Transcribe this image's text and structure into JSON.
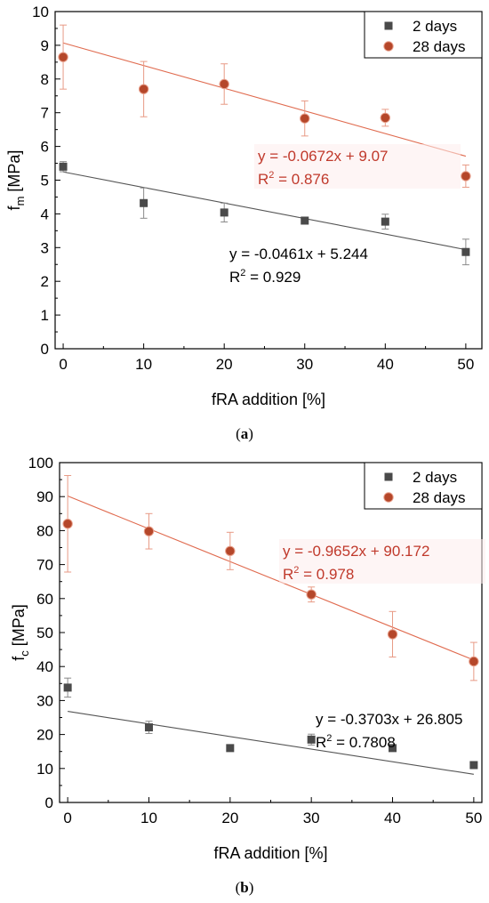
{
  "chart_data": [
    {
      "type": "scatter",
      "xlabel": "fRA addition [%]",
      "ylabel_main": "f",
      "ylabel_sub": "m",
      "ylabel_unit": " [MPa]",
      "xlim": [
        -1,
        52
      ],
      "ylim": [
        0,
        10
      ],
      "xticks": [
        0,
        10,
        20,
        30,
        40,
        50
      ],
      "yticks": [
        0,
        1,
        2,
        3,
        4,
        5,
        6,
        7,
        8,
        9,
        10
      ],
      "legend_position": "top-right",
      "series": [
        {
          "name": "2 days",
          "marker": "square",
          "color": "#4a4a4a",
          "x": [
            0,
            10,
            20,
            30,
            40,
            50
          ],
          "y": [
            5.4,
            4.32,
            4.04,
            3.8,
            3.77,
            2.87
          ],
          "err": [
            0.15,
            0.45,
            0.28,
            0.08,
            0.22,
            0.38
          ],
          "fit": {
            "slope": -0.0461,
            "intercept": 5.244,
            "color": "#555555",
            "equation": "y = -0.0461x + 5.244",
            "r2_label": "R",
            "r2_value": " = 0.929"
          }
        },
        {
          "name": "28 days",
          "marker": "circle",
          "color": "#b5472a",
          "x": [
            0,
            10,
            20,
            30,
            40,
            50
          ],
          "y": [
            8.65,
            7.7,
            7.85,
            6.83,
            6.85,
            5.12
          ],
          "err": [
            0.95,
            0.82,
            0.6,
            0.52,
            0.25,
            0.33
          ],
          "fit": {
            "slope": -0.0672,
            "intercept": 9.07,
            "color": "#e06b4f",
            "equation": "y = -0.0672x + 9.07",
            "r2_label": "R",
            "r2_value": " = 0.876"
          }
        }
      ]
    },
    {
      "type": "scatter",
      "xlabel": "fRA addition [%]",
      "ylabel_main": "f",
      "ylabel_sub": "c",
      "ylabel_unit": " [MPa]",
      "xlim": [
        -1,
        51
      ],
      "ylim": [
        0,
        100
      ],
      "xticks": [
        0,
        10,
        20,
        30,
        40,
        50
      ],
      "yticks": [
        0,
        10,
        20,
        30,
        40,
        50,
        60,
        70,
        80,
        90,
        100
      ],
      "legend_position": "top-right",
      "series": [
        {
          "name": "2 days",
          "marker": "square",
          "color": "#4a4a4a",
          "x": [
            0,
            10,
            20,
            30,
            40,
            50
          ],
          "y": [
            33.8,
            22.1,
            16.0,
            18.5,
            16.0,
            11.0
          ],
          "err": [
            2.8,
            1.8,
            0.7,
            1.6,
            0.8,
            1.0
          ],
          "fit": {
            "slope": -0.3703,
            "intercept": 26.805,
            "color": "#555555",
            "equation": "y = -0.3703x + 26.805",
            "r2_label": "R",
            "r2_value": " = 0.7808"
          }
        },
        {
          "name": "28 days",
          "marker": "circle",
          "color": "#b5472a",
          "x": [
            0,
            10,
            20,
            30,
            40,
            50
          ],
          "y": [
            82.0,
            79.8,
            74.0,
            61.2,
            49.5,
            41.5
          ],
          "err": [
            14.2,
            5.2,
            5.5,
            2.2,
            6.7,
            5.6
          ],
          "fit": {
            "slope": -0.9652,
            "intercept": 90.172,
            "color": "#e06b4f",
            "equation": "y = -0.9652x + 90.172",
            "r2_label": "R",
            "r2_value": " = 0.978"
          }
        }
      ]
    }
  ],
  "captions": {
    "a_open": "(",
    "a_letter": "a",
    "a_close": ")",
    "b_open": "(",
    "b_letter": "b",
    "b_close": ")"
  }
}
